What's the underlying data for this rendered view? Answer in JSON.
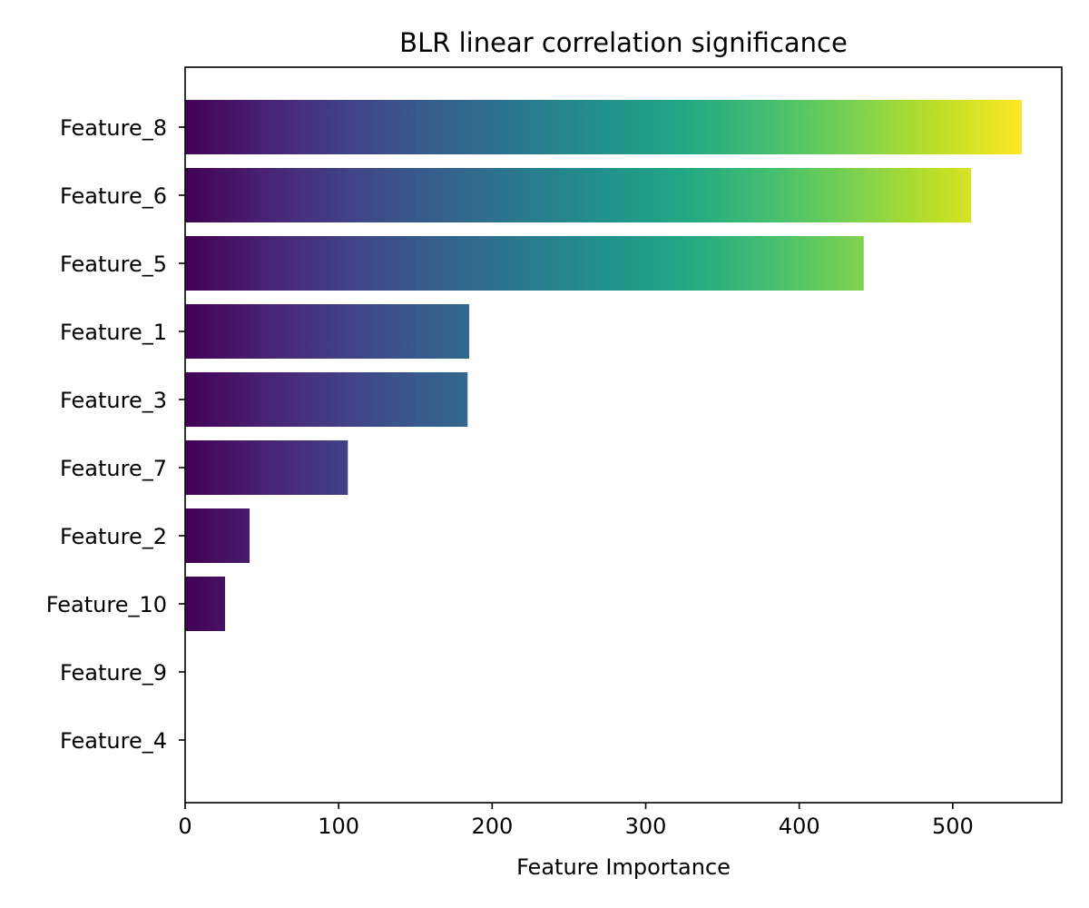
{
  "chart_data": {
    "type": "bar",
    "orientation": "horizontal",
    "title": "BLR linear correlation significance",
    "xlabel": "Feature Importance",
    "ylabel": "",
    "categories": [
      "Feature_8",
      "Feature_6",
      "Feature_5",
      "Feature_1",
      "Feature_3",
      "Feature_7",
      "Feature_2",
      "Feature_10",
      "Feature_9",
      "Feature_4"
    ],
    "values": [
      545,
      512,
      442,
      185,
      184,
      106,
      42,
      26,
      0,
      0
    ],
    "xlim": [
      0,
      571
    ],
    "xticks": [
      0,
      100,
      200,
      300,
      400,
      500
    ],
    "colormap": "viridis",
    "grid": false,
    "legend": "none"
  }
}
